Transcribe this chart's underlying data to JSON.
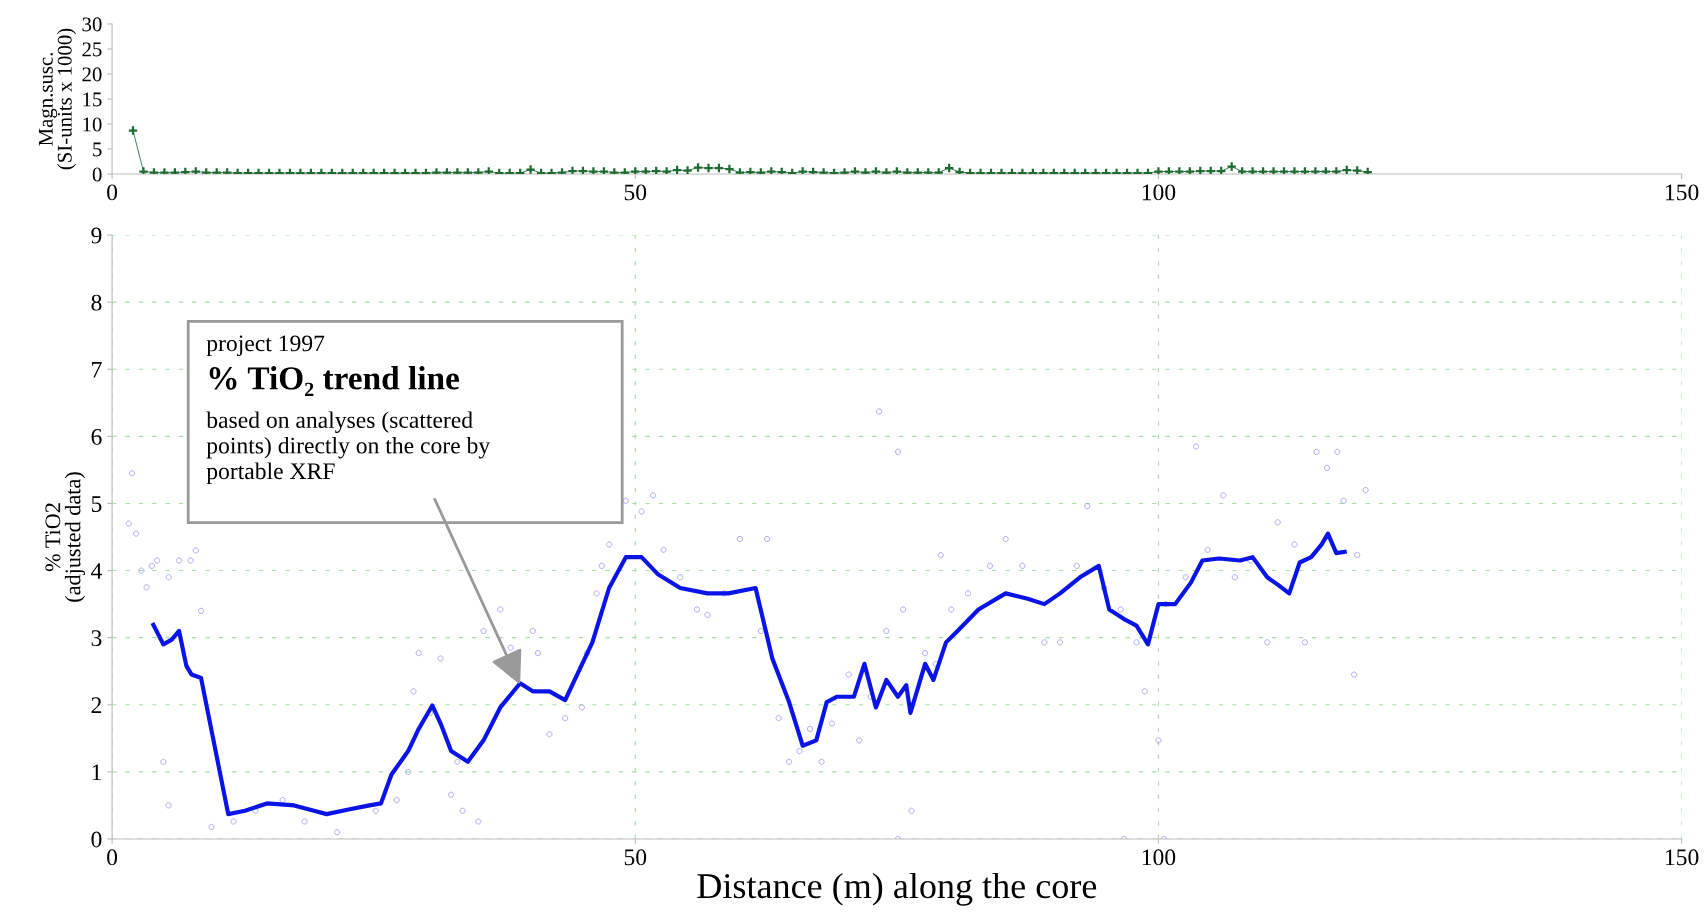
{
  "chart_data": [
    {
      "type": "line",
      "ylabel": "Magn.susc.\n(SI-units x 1000)",
      "xlim": [
        0,
        150
      ],
      "xticks": [
        0,
        50,
        100,
        150
      ],
      "ylim": [
        0,
        30
      ],
      "yticks": [
        0,
        5,
        10,
        15,
        20,
        25,
        30
      ],
      "grid": false,
      "legend": false,
      "marker": "cross",
      "line_style": "solid",
      "series": [
        {
          "color": "#1e6b32",
          "x": [
            2,
            3,
            4,
            5,
            6,
            7,
            8,
            9,
            10,
            11,
            12,
            13,
            14,
            15,
            16,
            17,
            18,
            19,
            20,
            21,
            22,
            23,
            24,
            25,
            26,
            27,
            28,
            29,
            30,
            31,
            32,
            33,
            34,
            35,
            36,
            37,
            38,
            39,
            40,
            41,
            42,
            43,
            44,
            45,
            46,
            47,
            48,
            49,
            50,
            51,
            52,
            53,
            54,
            55,
            56,
            57,
            58,
            59,
            60,
            61,
            62,
            63,
            64,
            65,
            66,
            67,
            68,
            69,
            70,
            71,
            72,
            73,
            74,
            75,
            76,
            77,
            78,
            79,
            80,
            81,
            82,
            83,
            84,
            85,
            86,
            87,
            88,
            89,
            90,
            91,
            92,
            93,
            94,
            95,
            96,
            97,
            98,
            99,
            100,
            101,
            102,
            103,
            104,
            105,
            106,
            107,
            108,
            109,
            110,
            111,
            112,
            113,
            114,
            115,
            116,
            117,
            118,
            119,
            120
          ],
          "values": [
            8.7,
            0.5,
            0.3,
            0.3,
            0.3,
            0.4,
            0.5,
            0.3,
            0.3,
            0.3,
            0.2,
            0.2,
            0.2,
            0.2,
            0.2,
            0.2,
            0.2,
            0.2,
            0.2,
            0.2,
            0.2,
            0.2,
            0.2,
            0.2,
            0.2,
            0.2,
            0.2,
            0.2,
            0.2,
            0.3,
            0.3,
            0.3,
            0.3,
            0.3,
            0.5,
            0.2,
            0.2,
            0.2,
            0.9,
            0.2,
            0.2,
            0.3,
            0.6,
            0.6,
            0.5,
            0.5,
            0.3,
            0.3,
            0.5,
            0.5,
            0.6,
            0.5,
            0.8,
            0.7,
            1.3,
            1.2,
            1.2,
            1.0,
            0.3,
            0.4,
            0.3,
            0.5,
            0.4,
            0.2,
            0.5,
            0.4,
            0.3,
            0.2,
            0.3,
            0.5,
            0.3,
            0.5,
            0.3,
            0.5,
            0.3,
            0.3,
            0.3,
            0.3,
            1.2,
            0.4,
            0.2,
            0.2,
            0.2,
            0.2,
            0.2,
            0.2,
            0.2,
            0.2,
            0.2,
            0.2,
            0.2,
            0.2,
            0.2,
            0.2,
            0.2,
            0.2,
            0.2,
            0.2,
            0.5,
            0.5,
            0.5,
            0.5,
            0.6,
            0.6,
            0.6,
            1.5,
            0.5,
            0.5,
            0.5,
            0.5,
            0.5,
            0.5,
            0.5,
            0.5,
            0.5,
            0.5,
            0.8,
            0.7,
            0.4
          ]
        }
      ]
    },
    {
      "type": "line",
      "xlabel": "Distance (m) along the core",
      "ylabel": "% TiO2\n(adjusted data)",
      "xlim": [
        0,
        150
      ],
      "xticks": [
        0,
        50,
        100,
        150
      ],
      "ylim": [
        0,
        9
      ],
      "yticks": [
        0,
        1,
        2,
        3,
        4,
        5,
        6,
        7,
        8,
        9
      ],
      "grid": true,
      "legend": false,
      "annotations": [
        "project 1997",
        "% TiO₂ trend line",
        {
          "text": "based on analyses (scattered\npoints) directly on the core by\nportable XRF",
          "x": 39,
          "y": 2.3
        }
      ],
      "series": [
        {
          "type": "scatter",
          "marker": "circle",
          "color": "#9a9af0",
          "x": [
            1.9,
            1.6,
            2.3,
            2.8,
            3.3,
            3.8,
            4.3,
            5.4,
            6.4,
            7.5,
            8.0,
            8.5,
            4.9,
            5.4,
            9.5,
            11.6,
            13.7,
            16.3,
            18.4,
            21.5,
            25.2,
            27.2,
            28.3,
            28.8,
            29.3,
            30.4,
            31.4,
            32.4,
            33.5,
            35,
            33,
            35.5,
            37.1,
            38.1,
            40.2,
            40.7,
            41.8,
            43.3,
            44.9,
            45.4,
            46.3,
            46.8,
            47.5,
            49.1,
            50.6,
            51.7,
            52.7,
            54.3,
            55.9,
            56.9,
            58.5,
            60,
            62.6,
            62,
            63.7,
            64.7,
            65.7,
            66.7,
            67.8,
            68.8,
            70.4,
            71.4,
            72.5,
            73.3,
            75.1,
            74,
            75.6,
            77.7,
            78.7,
            79.2,
            80.2,
            81.8,
            83.9,
            85.4,
            87,
            89.1,
            90.6,
            92.2,
            93.2,
            94.8,
            96.4,
            97.9,
            98.7,
            100,
            100.7,
            102.6,
            103.6,
            104.7,
            106.2,
            107.3,
            108.8,
            110.4,
            111.4,
            113,
            114,
            115.1,
            116.1,
            117.1,
            117.7,
            118.7,
            119.8,
            119,
            96.7,
            100.5,
            75.1,
            76.4
          ],
          "values": [
            5.45,
            4.7,
            4.55,
            4.0,
            3.75,
            4.07,
            4.15,
            3.9,
            4.15,
            4.15,
            4.3,
            3.4,
            1.15,
            0.5,
            0.18,
            0.26,
            0.42,
            0.58,
            0.26,
            0.1,
            0.42,
            0.58,
            1.0,
            2.2,
            2.77,
            1.88,
            2.69,
            0.66,
            0.42,
            0.26,
            1.15,
            3.1,
            3.42,
            2.85,
            3.1,
            2.77,
            1.56,
            1.8,
            1.96,
            2.77,
            3.66,
            4.07,
            4.39,
            5.04,
            4.88,
            5.12,
            4.31,
            3.9,
            3.42,
            3.34,
            3.66,
            4.47,
            4.47,
            3.1,
            1.8,
            1.15,
            1.31,
            1.64,
            1.15,
            1.72,
            2.45,
            1.47,
            2.12,
            6.37,
            5.77,
            3.1,
            3.42,
            2.77,
            2.61,
            4.23,
            3.42,
            3.66,
            4.07,
            4.47,
            4.07,
            2.93,
            2.93,
            4.07,
            4.96,
            3.74,
            3.42,
            2.93,
            2.2,
            1.47,
            3.5,
            3.9,
            5.85,
            4.31,
            5.12,
            3.9,
            4.15,
            2.93,
            4.72,
            4.39,
            2.93,
            5.77,
            5.53,
            5.77,
            5.04,
            2.45,
            5.2,
            4.23,
            0,
            0,
            0,
            0.42
          ]
        },
        {
          "type": "line",
          "marker": "none",
          "line_style": "solid",
          "color": "#0a14e6",
          "x": [
            3.95,
            4.9,
            5.7,
            6.4,
            7.1,
            7.6,
            8.5,
            11.1,
            12.7,
            14.8,
            17.4,
            19.3,
            20.5,
            22.6,
            24.6,
            25.7,
            26.7,
            28.3,
            29.3,
            30.6,
            31.4,
            32.4,
            34,
            35.5,
            37.1,
            39,
            40.2,
            41.8,
            43.3,
            45.9,
            47.5,
            49.1,
            50.6,
            52.2,
            54.3,
            56.9,
            58.9,
            61.5,
            63.1,
            64.7,
            66,
            67.3,
            68.3,
            69.3,
            70.9,
            71.9,
            73,
            74,
            75.1,
            75.9,
            76.3,
            77.7,
            78.5,
            79.7,
            80.8,
            82.8,
            85.4,
            87.5,
            89.1,
            90.6,
            92.5,
            94.3,
            95.3,
            96.9,
            97.9,
            99,
            100,
            101.6,
            103.1,
            104.2,
            105.8,
            107.8,
            109,
            110.4,
            111.4,
            112.5,
            113.5,
            114.6,
            115.6,
            116.2,
            117,
            117.8
          ],
          "values": [
            3.19,
            2.9,
            2.97,
            3.1,
            2.58,
            2.45,
            2.4,
            0.37,
            0.42,
            0.53,
            0.5,
            0.42,
            0.37,
            0.44,
            0.5,
            0.53,
            0.96,
            1.31,
            1.64,
            1.99,
            1.72,
            1.31,
            1.15,
            1.47,
            1.96,
            2.32,
            2.2,
            2.2,
            2.07,
            2.93,
            3.74,
            4.2,
            4.2,
            3.94,
            3.74,
            3.66,
            3.66,
            3.74,
            2.69,
            2.04,
            1.39,
            1.47,
            2.04,
            2.12,
            2.12,
            2.61,
            1.96,
            2.37,
            2.12,
            2.29,
            1.88,
            2.61,
            2.37,
            2.93,
            3.1,
            3.42,
            3.66,
            3.58,
            3.5,
            3.66,
            3.9,
            4.07,
            3.42,
            3.26,
            3.18,
            2.9,
            3.5,
            3.5,
            3.82,
            4.15,
            4.18,
            4.15,
            4.2,
            3.9,
            3.79,
            3.66,
            4.12,
            4.2,
            4.39,
            4.55,
            4.26,
            4.28
          ]
        }
      ]
    }
  ]
}
